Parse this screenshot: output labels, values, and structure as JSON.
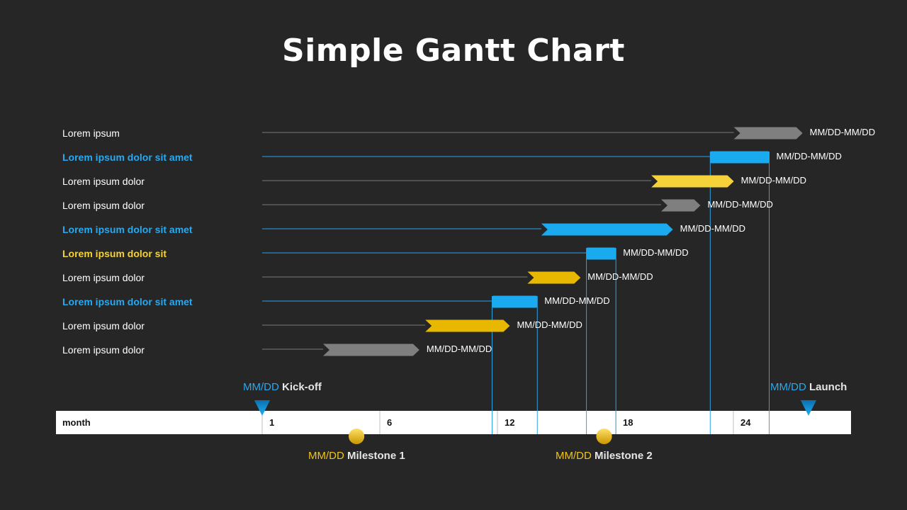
{
  "title": "Simple Gantt Chart",
  "colors": {
    "background": "#262626",
    "gray": "#7f7f7f",
    "blue": "#1aaaf0",
    "yellow": "#f5d23a",
    "gold": "#e8b800",
    "label_blue": "#29a9f0",
    "label_yellow": "#f5d23a",
    "milestone_gold": "#f0c419"
  },
  "chart_data": {
    "type": "bar",
    "title": "Simple Gantt Chart",
    "xlabel": "month",
    "x_ticks": [
      1,
      6,
      12,
      18,
      24
    ],
    "xlim": [
      0,
      30
    ],
    "tasks": [
      {
        "label": "Lorem ipsum",
        "style": "normal",
        "start": 24,
        "end": 27.5,
        "color": "gray",
        "shape": "arrow",
        "date_label": "MM/DD-MM/DD",
        "guides": false
      },
      {
        "label": "Lorem ipsum dolor sit amet",
        "style": "blue",
        "start": 22.8,
        "end": 25.8,
        "color": "blue",
        "shape": "rect",
        "date_label": "MM/DD-MM/DD",
        "guides": true
      },
      {
        "label": "Lorem ipsum dolor",
        "style": "normal",
        "start": 19.8,
        "end": 24,
        "color": "yellow",
        "shape": "chevron",
        "date_label": "MM/DD-MM/DD",
        "guides": false
      },
      {
        "label": "Lorem ipsum dolor",
        "style": "normal",
        "start": 20.3,
        "end": 22.3,
        "color": "gray",
        "shape": "chevron",
        "date_label": "MM/DD-MM/DD",
        "guides": false
      },
      {
        "label": "Lorem ipsum dolor sit amet",
        "style": "blue",
        "start": 14.2,
        "end": 20.9,
        "color": "blue",
        "shape": "chevron",
        "date_label": "MM/DD-MM/DD",
        "guides": false
      },
      {
        "label": "Lorem ipsum dolor sit",
        "style": "yellow",
        "start": 16.5,
        "end": 18,
        "color": "blue",
        "shape": "rect",
        "date_label": "MM/DD-MM/DD",
        "guides": true
      },
      {
        "label": "Lorem ipsum dolor",
        "style": "normal",
        "start": 13.5,
        "end": 16.2,
        "color": "gold",
        "shape": "chevron",
        "date_label": "MM/DD-MM/DD",
        "guides": false
      },
      {
        "label": "Lorem ipsum dolor sit amet",
        "style": "blue",
        "start": 11.7,
        "end": 14,
        "color": "blue",
        "shape": "rect",
        "date_label": "MM/DD-MM/DD",
        "guides": true
      },
      {
        "label": "Lorem ipsum dolor",
        "style": "normal",
        "start": 8.3,
        "end": 12.6,
        "color": "gold",
        "shape": "chevron",
        "date_label": "MM/DD-MM/DD",
        "guides": false
      },
      {
        "label": "Lorem ipsum dolor",
        "style": "normal",
        "start": 3.1,
        "end": 8,
        "color": "gray",
        "shape": "chevron",
        "date_label": "MM/DD-MM/DD",
        "guides": false
      }
    ],
    "markers": [
      {
        "date": "MM/DD",
        "name": "Kick-off",
        "x": 0,
        "type": "triangle",
        "position": "above",
        "color": "blue"
      },
      {
        "date": "MM/DD",
        "name": "Launch",
        "x": 27.8,
        "type": "triangle",
        "position": "above",
        "color": "blue"
      },
      {
        "date": "MM/DD",
        "name": "Milestone 1",
        "x": 4.8,
        "type": "circle",
        "position": "below",
        "color": "milestone_gold"
      },
      {
        "date": "MM/DD",
        "name": "Milestone 2",
        "x": 17.4,
        "type": "circle",
        "position": "below",
        "color": "milestone_gold"
      }
    ]
  }
}
